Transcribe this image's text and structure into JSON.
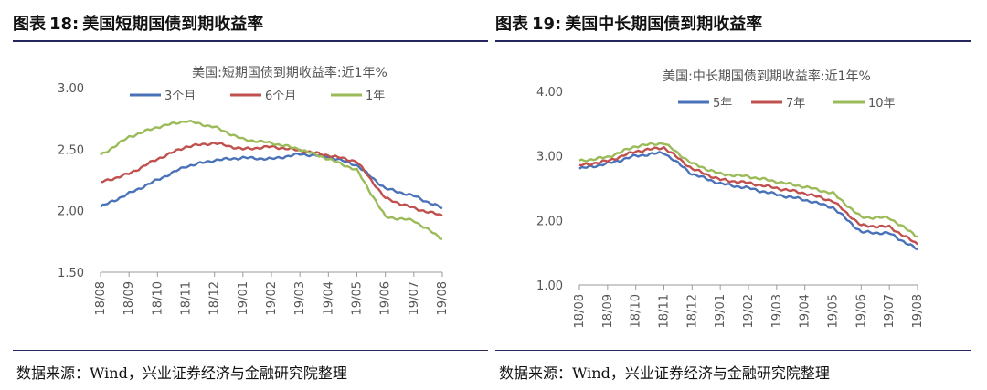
{
  "panels": [
    {
      "fig_label": "图表",
      "fig_num": "18:",
      "fig_title": "美国短期国债到期收益率",
      "source": "数据来源：Wind，兴业证券经济与金融研究院整理"
    },
    {
      "fig_label": "图表",
      "fig_num": "19:",
      "fig_title": "美国中长期国债到期收益率",
      "source": "数据来源：Wind，兴业证券经济与金融研究院整理"
    }
  ],
  "chart_data": [
    {
      "type": "line",
      "title": "美国:短期国债到期收益率:近1年%",
      "ylim": [
        1.5,
        3.0
      ],
      "yticks": [
        "3.00",
        "2.50",
        "2.00",
        "1.50"
      ],
      "x_ticks": [
        "18/08",
        "18/09",
        "18/10",
        "18/11",
        "18/12",
        "19/01",
        "19/02",
        "19/03",
        "19/04",
        "19/05",
        "19/06",
        "19/07",
        "19/08"
      ],
      "x": [
        "18/08",
        "18/09",
        "18/10",
        "18/11",
        "18/12",
        "19/01",
        "19/02",
        "19/03",
        "19/04",
        "19/05",
        "19/06",
        "19/07",
        "19/08"
      ],
      "legend_position": "top",
      "grid": false,
      "series": [
        {
          "name": "3个月",
          "color": "#4a72b8",
          "values": [
            2.03,
            2.14,
            2.25,
            2.36,
            2.41,
            2.43,
            2.42,
            2.46,
            2.44,
            2.37,
            2.18,
            2.12,
            2.02
          ]
        },
        {
          "name": "6个月",
          "color": "#c0504d",
          "values": [
            2.23,
            2.3,
            2.42,
            2.52,
            2.55,
            2.5,
            2.52,
            2.49,
            2.45,
            2.4,
            2.1,
            2.02,
            1.96
          ]
        },
        {
          "name": "1年",
          "color": "#9bbb59",
          "values": [
            2.45,
            2.6,
            2.68,
            2.73,
            2.68,
            2.58,
            2.55,
            2.5,
            2.42,
            2.33,
            1.95,
            1.92,
            1.77
          ]
        }
      ]
    },
    {
      "type": "line",
      "title": "美国:中长期国债到期收益率:近1年%",
      "ylim": [
        1.0,
        4.0
      ],
      "yticks": [
        "4.00",
        "3.00",
        "2.00",
        "1.00"
      ],
      "x_ticks": [
        "18/08",
        "18/09",
        "18/10",
        "18/11",
        "18/12",
        "19/01",
        "19/02",
        "19/03",
        "19/04",
        "19/05",
        "19/06",
        "19/07",
        "19/08"
      ],
      "x": [
        "18/08",
        "18/09",
        "18/10",
        "18/11",
        "18/12",
        "19/01",
        "19/02",
        "19/03",
        "19/04",
        "19/05",
        "19/06",
        "19/07",
        "19/08"
      ],
      "legend_position": "top",
      "grid": false,
      "series": [
        {
          "name": "5年",
          "color": "#4a72b8",
          "values": [
            2.8,
            2.88,
            3.0,
            3.05,
            2.72,
            2.57,
            2.5,
            2.4,
            2.32,
            2.2,
            1.82,
            1.8,
            1.55
          ]
        },
        {
          "name": "7年",
          "color": "#c0504d",
          "values": [
            2.85,
            2.92,
            3.07,
            3.13,
            2.8,
            2.63,
            2.58,
            2.5,
            2.42,
            2.3,
            1.92,
            1.9,
            1.63
          ]
        },
        {
          "name": "10年",
          "color": "#9bbb59",
          "values": [
            2.92,
            2.98,
            3.15,
            3.2,
            2.88,
            2.72,
            2.68,
            2.6,
            2.52,
            2.42,
            2.05,
            2.04,
            1.75
          ]
        }
      ]
    }
  ]
}
